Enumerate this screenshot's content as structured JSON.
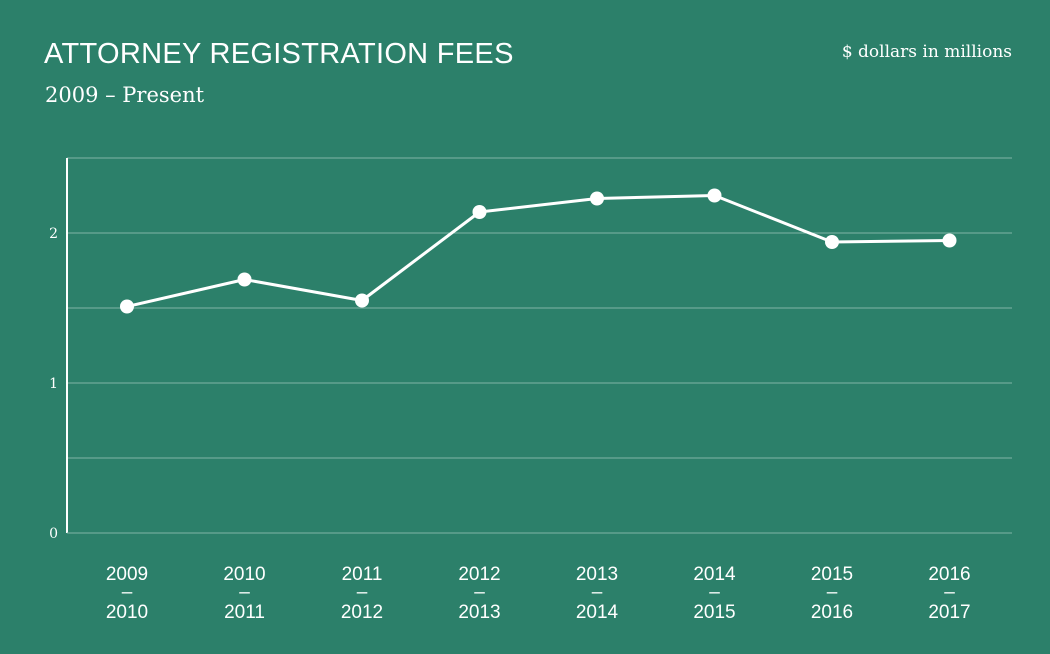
{
  "header": {
    "title": "ATTORNEY REGISTRATION FEES",
    "subtitle": "2009 – Present",
    "units": "$ dollars in millions"
  },
  "colors": {
    "background": "#2c806a",
    "line": "#ffffff",
    "grid": "#7fb5a6"
  },
  "chart_data": {
    "type": "line",
    "title": "ATTORNEY REGISTRATION FEES",
    "subtitle": "2009 – Present",
    "ylabel": "$ dollars in millions",
    "xlabel": "",
    "categories": [
      [
        "2009",
        "–",
        "2010"
      ],
      [
        "2010",
        "–",
        "2011"
      ],
      [
        "2011",
        "–",
        "2012"
      ],
      [
        "2012",
        "–",
        "2013"
      ],
      [
        "2013",
        "–",
        "2014"
      ],
      [
        "2014",
        "–",
        "2015"
      ],
      [
        "2015",
        "–",
        "2016"
      ],
      [
        "2016",
        "–",
        "2017"
      ]
    ],
    "values": [
      1.51,
      1.69,
      1.55,
      2.14,
      2.23,
      2.25,
      1.94,
      1.95
    ],
    "ylim": [
      0,
      2.5
    ],
    "yticks": [
      0,
      1,
      2
    ],
    "grid": true,
    "gridlines_at": [
      0.5,
      1,
      1.5,
      2,
      2.5
    ],
    "markers": "circle"
  }
}
